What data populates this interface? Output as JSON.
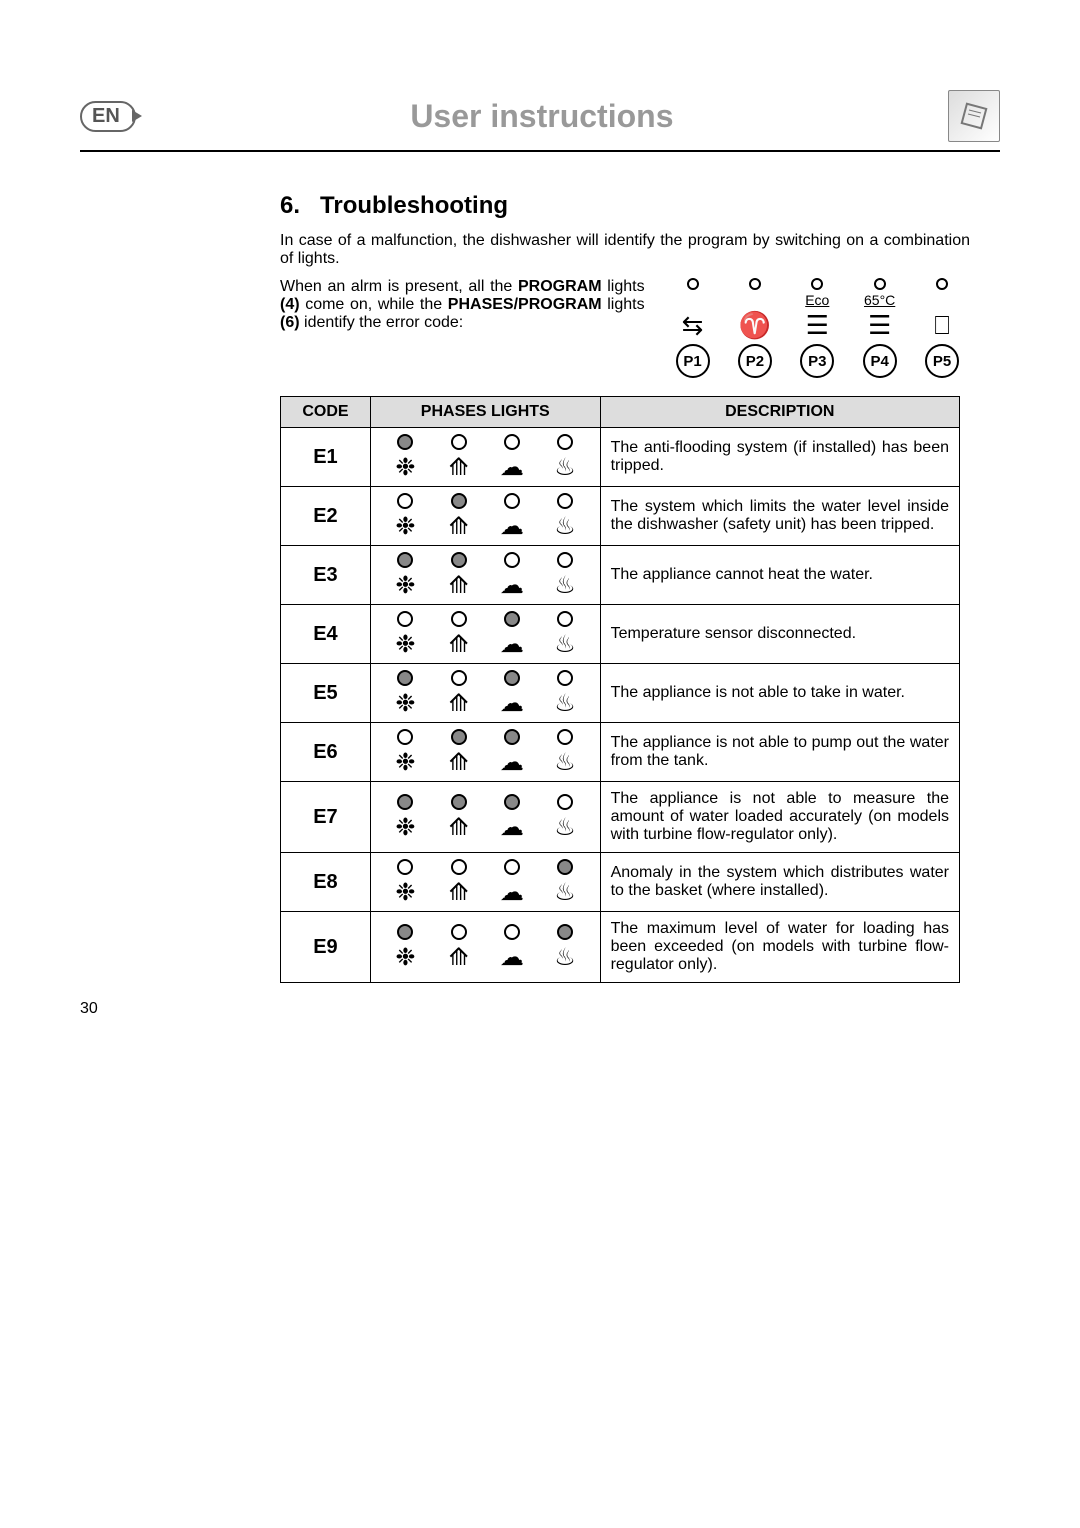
{
  "header": {
    "lang": "EN",
    "title": "User instructions"
  },
  "section": {
    "number": "6.",
    "title": "Troubleshooting",
    "intro": "In case of a malfunction, the dishwasher will identify the program by switching on a combination of lights.",
    "alarm_text_1": "When an alrm is present, all the ",
    "alarm_text_2": "PROGRAM",
    "alarm_text_3": " lights ",
    "alarm_text_4": "(4)",
    "alarm_text_5": " come on, while the ",
    "alarm_text_6": "PHASES/PROGRAM",
    "alarm_text_7": " lights ",
    "alarm_text_8": "(6)",
    "alarm_text_9": " identify the error code:"
  },
  "programs": [
    {
      "id": "P1",
      "label": "",
      "glyph": "⇆"
    },
    {
      "id": "P2",
      "label": "",
      "glyph": "♈"
    },
    {
      "id": "P3",
      "label": "Eco",
      "glyph": "☰"
    },
    {
      "id": "P4",
      "label": "65°C",
      "glyph": "☰"
    },
    {
      "id": "P5",
      "label": "",
      "glyph": "⎕"
    }
  ],
  "phase_glyphs": [
    "❉",
    "⟰",
    "☁",
    "♨"
  ],
  "table_headers": {
    "code": "CODE",
    "lights": "PHASES LIGHTS",
    "desc": "DESCRIPTION"
  },
  "errors": [
    {
      "code": "E1",
      "pattern": [
        1,
        0,
        0,
        0
      ],
      "desc": "The anti-flooding system (if installed) has been tripped."
    },
    {
      "code": "E2",
      "pattern": [
        0,
        1,
        0,
        0
      ],
      "desc": "The system which limits the water level inside the dishwasher (safety unit) has been tripped."
    },
    {
      "code": "E3",
      "pattern": [
        1,
        1,
        0,
        0
      ],
      "desc": "The appliance cannot heat the water."
    },
    {
      "code": "E4",
      "pattern": [
        0,
        0,
        1,
        0
      ],
      "desc": "Temperature sensor disconnected."
    },
    {
      "code": "E5",
      "pattern": [
        1,
        0,
        1,
        0
      ],
      "desc": "The appliance is not able to take in water."
    },
    {
      "code": "E6",
      "pattern": [
        0,
        1,
        1,
        0
      ],
      "desc": "The appliance is not able to pump out the water from the tank."
    },
    {
      "code": "E7",
      "pattern": [
        1,
        1,
        1,
        0
      ],
      "desc": "The appliance is not able to measure the amount of water loaded accurately (on models with turbine flow-regulator only)."
    },
    {
      "code": "E8",
      "pattern": [
        0,
        0,
        0,
        1
      ],
      "desc": "Anomaly in the system which distributes water to the basket (where installed)."
    },
    {
      "code": "E9",
      "pattern": [
        1,
        0,
        0,
        1
      ],
      "desc": "The maximum level of water for loading has been exceeded (on models with turbine flow-regulator only)."
    }
  ],
  "page_number": "30",
  "colors": {
    "title_gray": "#999999",
    "header_bg": "#dddddd",
    "indicator_on": "#888888"
  }
}
